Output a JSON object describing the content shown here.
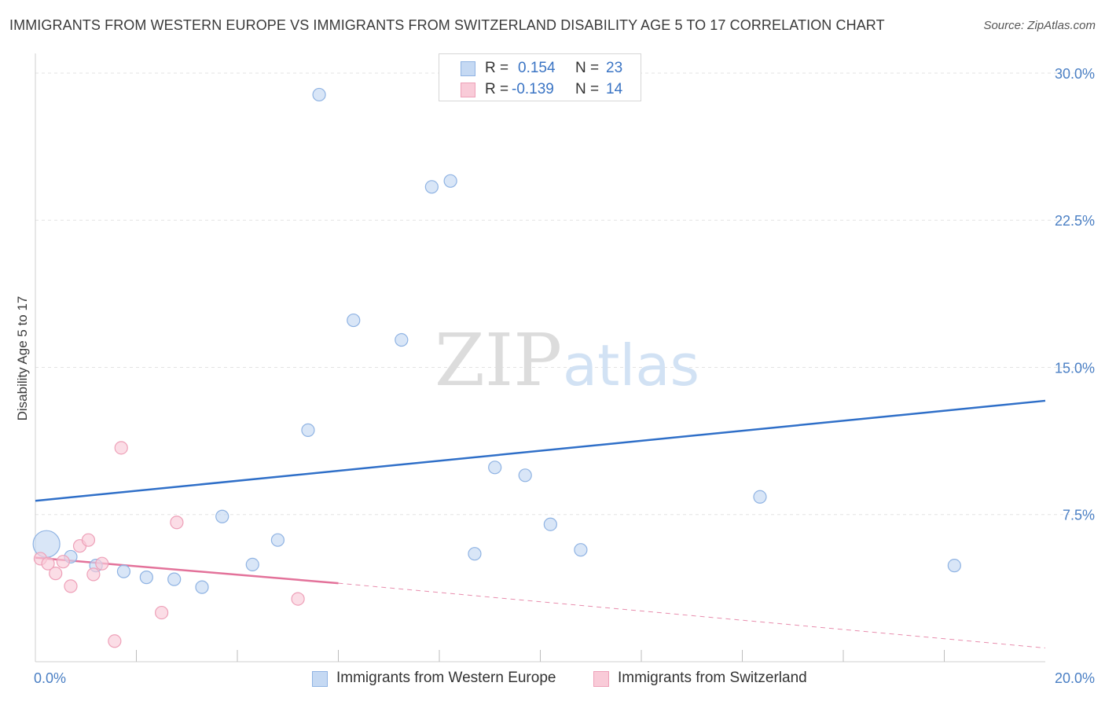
{
  "title": "IMMIGRANTS FROM WESTERN EUROPE VS IMMIGRANTS FROM SWITZERLAND DISABILITY AGE 5 TO 17 CORRELATION CHART",
  "source": "Source: ZipAtlas.com",
  "watermark": {
    "zip": "ZIP",
    "atlas": "atlas"
  },
  "colors": {
    "blue_fill": "#c5d9f3",
    "blue_stroke": "#8fb3e3",
    "blue_line": "#2f6fc8",
    "pink_fill": "#f9cbd8",
    "pink_stroke": "#eea0b8",
    "pink_line": "#e3729a",
    "tick_text": "#4a7fc4",
    "grid": "#e3e3e3"
  },
  "stat_legend": {
    "r_label": "R =",
    "n_label": "N =",
    "rows": [
      {
        "series": "blue",
        "r": "0.154",
        "n": "23"
      },
      {
        "series": "pink",
        "r": "-0.139",
        "n": "14"
      }
    ]
  },
  "chart_data": {
    "type": "scatter",
    "title": "IMMIGRANTS FROM WESTERN EUROPE VS IMMIGRANTS FROM SWITZERLAND DISABILITY AGE 5 TO 17 CORRELATION CHART",
    "xlabel": "",
    "ylabel": "Disability Age 5 to 17",
    "xlim": [
      0,
      20
    ],
    "ylim": [
      0,
      30.6
    ],
    "x_tick_labels": [
      {
        "value": 0,
        "label": "0.0%"
      },
      {
        "value": 20,
        "label": "20.0%"
      }
    ],
    "x_minor_ticks": [
      2,
      4,
      6,
      8,
      10,
      12,
      14,
      16,
      18
    ],
    "y_ticks": [
      {
        "value": 7.5,
        "label": "7.5%"
      },
      {
        "value": 15,
        "label": "15.0%"
      },
      {
        "value": 22.5,
        "label": "22.5%"
      },
      {
        "value": 30,
        "label": "30.0%"
      }
    ],
    "grid": true,
    "legend_position": "bottom-center",
    "series": [
      {
        "name": "Immigrants from Western Europe",
        "color": "blue",
        "points": [
          {
            "x": 0.22,
            "y": 6.0,
            "size": "large"
          },
          {
            "x": 0.7,
            "y": 5.35
          },
          {
            "x": 1.2,
            "y": 4.9
          },
          {
            "x": 1.75,
            "y": 4.6
          },
          {
            "x": 2.2,
            "y": 4.3
          },
          {
            "x": 2.75,
            "y": 4.2
          },
          {
            "x": 3.3,
            "y": 3.8
          },
          {
            "x": 3.7,
            "y": 7.4
          },
          {
            "x": 4.3,
            "y": 4.95
          },
          {
            "x": 4.8,
            "y": 6.2
          },
          {
            "x": 5.4,
            "y": 11.8
          },
          {
            "x": 5.62,
            "y": 28.9
          },
          {
            "x": 6.3,
            "y": 17.4
          },
          {
            "x": 7.25,
            "y": 16.4
          },
          {
            "x": 7.85,
            "y": 24.2
          },
          {
            "x": 8.22,
            "y": 24.5
          },
          {
            "x": 8.7,
            "y": 5.5
          },
          {
            "x": 9.1,
            "y": 9.9
          },
          {
            "x": 9.7,
            "y": 9.5
          },
          {
            "x": 10.2,
            "y": 7.0
          },
          {
            "x": 10.8,
            "y": 5.7
          },
          {
            "x": 14.35,
            "y": 8.4
          },
          {
            "x": 18.2,
            "y": 4.9
          }
        ],
        "trend": {
          "x0": 0,
          "y0": 8.2,
          "x1": 20,
          "y1": 13.3
        }
      },
      {
        "name": "Immigrants from Switzerland",
        "color": "pink",
        "points": [
          {
            "x": 0.1,
            "y": 5.25
          },
          {
            "x": 0.25,
            "y": 5.0
          },
          {
            "x": 0.4,
            "y": 4.5
          },
          {
            "x": 0.55,
            "y": 5.1
          },
          {
            "x": 0.7,
            "y": 3.85
          },
          {
            "x": 0.88,
            "y": 5.9
          },
          {
            "x": 1.05,
            "y": 6.2
          },
          {
            "x": 1.15,
            "y": 4.45
          },
          {
            "x": 1.32,
            "y": 5.0
          },
          {
            "x": 1.57,
            "y": 1.05
          },
          {
            "x": 1.7,
            "y": 10.9
          },
          {
            "x": 2.5,
            "y": 2.5
          },
          {
            "x": 2.8,
            "y": 7.1
          },
          {
            "x": 5.2,
            "y": 3.2
          }
        ],
        "trend": {
          "x0": 0,
          "y0": 5.3,
          "x1": 6.0,
          "y1": 4.0
        },
        "trend_extension": {
          "x0": 6.0,
          "y0": 4.0,
          "x1": 20,
          "y1": 0.7
        }
      }
    ]
  },
  "bottom_legend": {
    "items": [
      {
        "series": "blue",
        "label": "Immigrants from Western Europe"
      },
      {
        "series": "pink",
        "label": "Immigrants from Switzerland"
      }
    ]
  }
}
